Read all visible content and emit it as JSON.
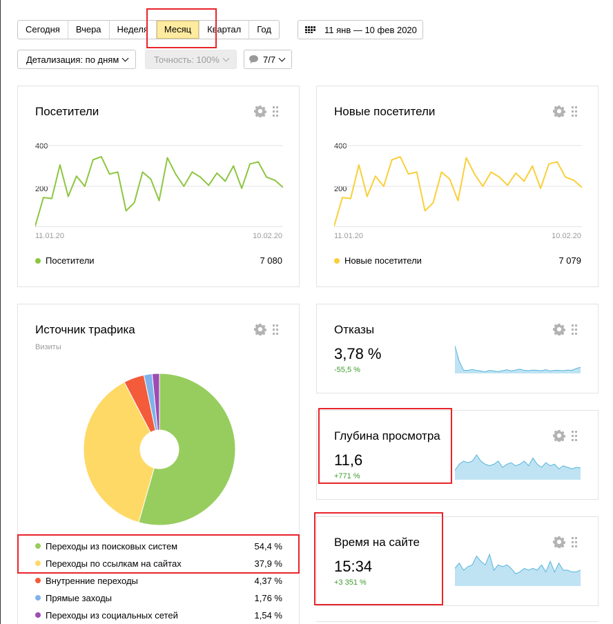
{
  "period_tabs": [
    {
      "label": "Сегодня",
      "active": false
    },
    {
      "label": "Вчера",
      "active": false
    },
    {
      "label": "Неделя",
      "active": false
    },
    {
      "label": "Месяц",
      "active": true
    },
    {
      "label": "Квартал",
      "active": false
    },
    {
      "label": "Год",
      "active": false
    }
  ],
  "date_range": {
    "label": "11 янв — 10 фев 2020",
    "icon": "calendar-icon"
  },
  "toolbar": {
    "detail_label": "Детализация: по дням",
    "accuracy_label": "Точность: 100%",
    "segments_label": "7/7",
    "segments_icon": "comment-icon"
  },
  "visitors_widget": {
    "title": "Посетители",
    "y_ticks": [
      "400",
      "200"
    ],
    "date_start": "11.01.20",
    "date_end": "10.02.20",
    "legend_label": "Посетители",
    "legend_value": "7 080",
    "color": "#8cc63e"
  },
  "new_visitors_widget": {
    "title": "Новые посетители",
    "y_ticks": [
      "400",
      "200"
    ],
    "date_start": "11.01.20",
    "date_end": "10.02.20",
    "legend_label": "Новые посетители",
    "legend_value": "7 079",
    "color": "#f9cf3a"
  },
  "traffic_widget": {
    "title": "Источник трафика",
    "subtitle": "Визиты",
    "sources": [
      {
        "label": "Переходы из поисковых систем",
        "value": "54,4 %",
        "color": "#97cd5e"
      },
      {
        "label": "Переходы по ссылкам на сайтах",
        "value": "37,9 %",
        "color": "#ffd966"
      },
      {
        "label": "Внутренние переходы",
        "value": "4,37 %",
        "color": "#f35b3a"
      },
      {
        "label": "Прямые заходы",
        "value": "1,76 %",
        "color": "#80b3ea"
      },
      {
        "label": "Переходы из социальных сетей",
        "value": "1,54 %",
        "color": "#9f4bb5"
      }
    ]
  },
  "bounce_widget": {
    "title": "Отказы",
    "value": "3,78 %",
    "delta": "-55,5 %"
  },
  "depth_widget": {
    "title": "Глубина просмотра",
    "value": "11,6",
    "delta": "+771 %"
  },
  "time_widget": {
    "title": "Время на сайте",
    "value": "15:34",
    "delta": "+3 351 %"
  },
  "chart_data": [
    {
      "type": "line",
      "name": "Посетители",
      "x_start": "11.01.20",
      "x_end": "10.02.20",
      "ylim": [
        0,
        440
      ],
      "y_ticks": [
        200,
        400
      ],
      "values": [
        5,
        145,
        140,
        305,
        150,
        250,
        200,
        330,
        345,
        260,
        270,
        80,
        120,
        270,
        235,
        130,
        340,
        260,
        200,
        270,
        245,
        205,
        265,
        225,
        300,
        190,
        310,
        320,
        245,
        230,
        195
      ]
    },
    {
      "type": "line",
      "name": "Новые посетители",
      "x_start": "11.01.20",
      "x_end": "10.02.20",
      "ylim": [
        0,
        440
      ],
      "y_ticks": [
        200,
        400
      ],
      "values": [
        5,
        145,
        140,
        305,
        150,
        250,
        200,
        330,
        345,
        260,
        270,
        80,
        120,
        270,
        235,
        130,
        340,
        260,
        200,
        270,
        245,
        205,
        265,
        225,
        300,
        190,
        310,
        320,
        245,
        230,
        195
      ]
    },
    {
      "type": "pie",
      "name": "Источник трафика",
      "categories": [
        "Переходы из поисковых систем",
        "Переходы по ссылкам на сайтах",
        "Внутренние переходы",
        "Прямые заходы",
        "Переходы из социальных сетей"
      ],
      "values": [
        54.4,
        37.9,
        4.37,
        1.76,
        1.54
      ]
    },
    {
      "type": "area",
      "name": "Отказы",
      "values": [
        9,
        4,
        1,
        1,
        1.3,
        1,
        0.8,
        0.5,
        1,
        0.8,
        0.6,
        0.9,
        1.2,
        0.8,
        1.1,
        1.4,
        1,
        0.9,
        1.1,
        1,
        0.9,
        1.2,
        0.8,
        1,
        1,
        0.9,
        1.1,
        1,
        1.6,
        2
      ]
    },
    {
      "type": "area",
      "name": "Глубина просмотра",
      "values": [
        3,
        5,
        6,
        5.5,
        6,
        8,
        6,
        5,
        4.5,
        5,
        6,
        4,
        5,
        5.5,
        4.5,
        5,
        6,
        4.5,
        7,
        5,
        4,
        5.5,
        4.5,
        5,
        3.5,
        4.5,
        4,
        3.5,
        4,
        3.8
      ]
    },
    {
      "type": "area",
      "name": "Время на сайте",
      "values": [
        5,
        6.5,
        4.5,
        5.5,
        6,
        8.5,
        7,
        6,
        9,
        4.5,
        6,
        5.5,
        6,
        5,
        3.5,
        4,
        5,
        4.5,
        5,
        4.5,
        6,
        4,
        7,
        4,
        6.5,
        4.5,
        4.5,
        4,
        4,
        4.5
      ]
    }
  ]
}
